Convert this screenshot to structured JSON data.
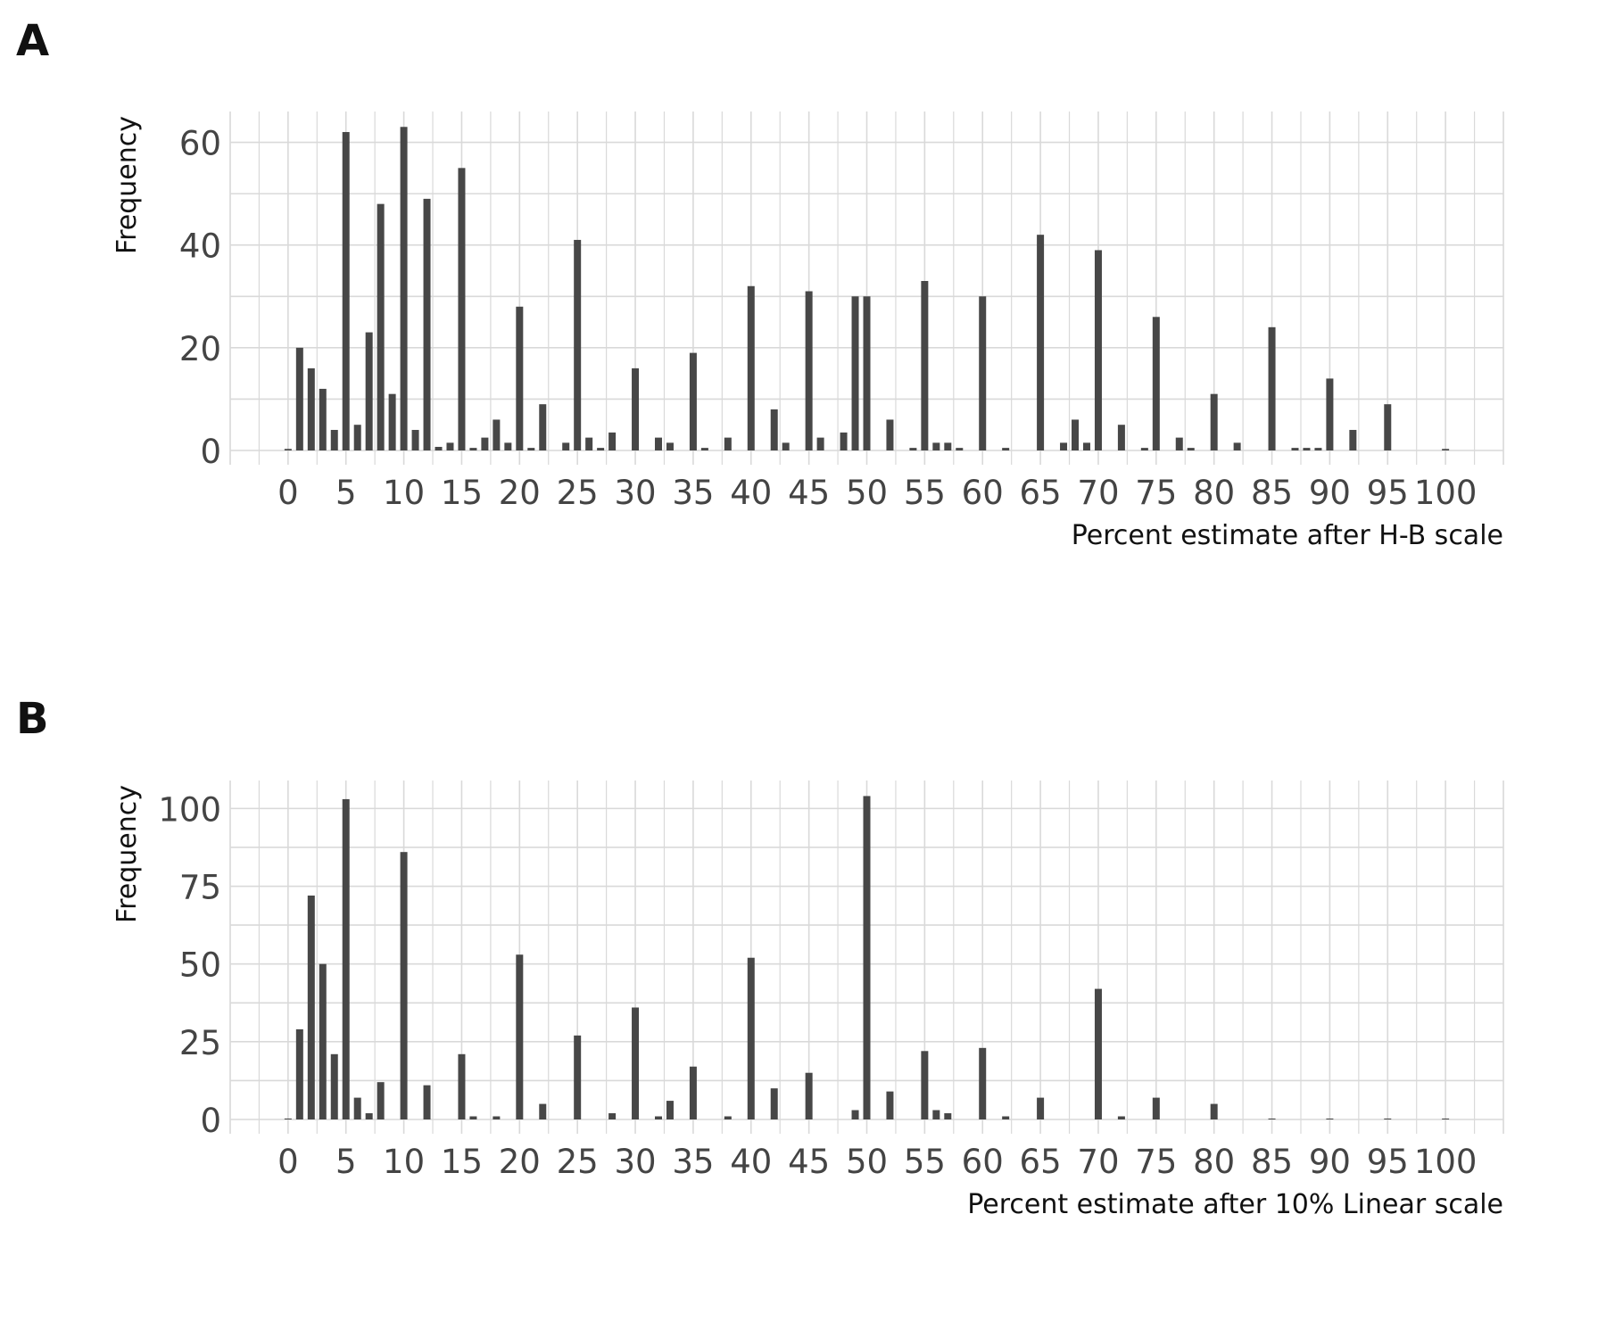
{
  "panels": [
    {
      "letter": "A"
    },
    {
      "letter": "B"
    }
  ],
  "chart_data": [
    {
      "type": "bar",
      "panel": "A",
      "title": "",
      "xlabel": "Percent estimate after H-B scale",
      "ylabel": "Frequency",
      "xlim": [
        -5,
        105
      ],
      "ylim": [
        0,
        66
      ],
      "x_ticks": [
        0,
        5,
        10,
        15,
        20,
        25,
        30,
        35,
        40,
        45,
        50,
        55,
        60,
        65,
        70,
        75,
        80,
        85,
        90,
        95,
        100
      ],
      "y_ticks": [
        0,
        20,
        40,
        60
      ],
      "grid": true,
      "bar_color": "#474747",
      "x": [
        0,
        1,
        2,
        3,
        4,
        5,
        6,
        7,
        8,
        9,
        10,
        11,
        12,
        13,
        14,
        15,
        16,
        17,
        18,
        19,
        20,
        21,
        22,
        24,
        25,
        26,
        27,
        28,
        30,
        32,
        33,
        35,
        36,
        38,
        40,
        42,
        43,
        45,
        46,
        48,
        49,
        50,
        52,
        54,
        55,
        56,
        57,
        58,
        60,
        62,
        65,
        67,
        68,
        69,
        70,
        72,
        74,
        75,
        77,
        78,
        80,
        82,
        85,
        87,
        88,
        89,
        90,
        92,
        95,
        100
      ],
      "values": [
        0.3,
        20,
        16,
        12,
        4,
        62,
        5,
        23,
        48,
        11,
        63,
        4,
        49,
        0.7,
        1.5,
        55,
        0.5,
        2.5,
        6,
        1.5,
        28,
        0.5,
        9,
        1.5,
        41,
        2.5,
        0.5,
        3.5,
        16,
        2.5,
        1.5,
        19,
        0.5,
        2.5,
        32,
        8,
        1.5,
        31,
        2.5,
        3.5,
        30,
        30,
        6,
        0.5,
        33,
        1.5,
        1.5,
        0.5,
        30,
        0.5,
        42,
        1.5,
        6,
        1.5,
        39,
        5,
        0.5,
        26,
        2.5,
        0.5,
        11,
        1.5,
        24,
        0.5,
        0.5,
        0.5,
        14,
        4,
        9,
        0.3
      ]
    },
    {
      "type": "bar",
      "panel": "B",
      "title": "",
      "xlabel": "Percent estimate after 10% Linear scale",
      "ylabel": "Frequency",
      "xlim": [
        -5,
        105
      ],
      "ylim": [
        0,
        109
      ],
      "x_ticks": [
        0,
        5,
        10,
        15,
        20,
        25,
        30,
        35,
        40,
        45,
        50,
        55,
        60,
        65,
        70,
        75,
        80,
        85,
        90,
        95,
        100
      ],
      "y_ticks": [
        0,
        25,
        50,
        75,
        100
      ],
      "grid": true,
      "bar_color": "#474747",
      "x": [
        0,
        1,
        2,
        3,
        4,
        5,
        6,
        7,
        8,
        10,
        12,
        15,
        16,
        18,
        20,
        22,
        25,
        28,
        30,
        32,
        33,
        35,
        38,
        40,
        42,
        45,
        49,
        50,
        52,
        55,
        56,
        57,
        60,
        62,
        65,
        70,
        72,
        75,
        80,
        85,
        90,
        95,
        100
      ],
      "values": [
        0.3,
        29,
        72,
        50,
        21,
        103,
        7,
        2,
        12,
        86,
        11,
        21,
        1,
        1,
        53,
        5,
        27,
        2,
        36,
        1,
        6,
        17,
        1,
        52,
        10,
        15,
        3,
        104,
        9,
        22,
        3,
        2,
        23,
        1,
        7,
        42,
        1,
        7,
        5,
        0.3,
        0.3,
        0.3,
        0.3
      ]
    }
  ]
}
